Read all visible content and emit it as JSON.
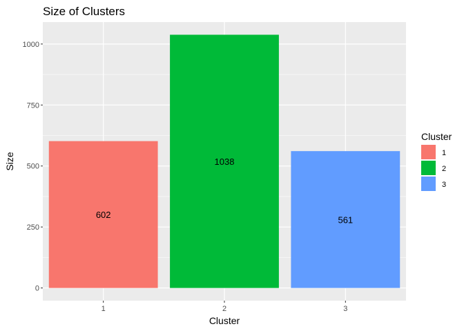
{
  "chart_data": {
    "type": "bar",
    "title": "Size of Clusters",
    "xlabel": "Cluster",
    "ylabel": "Size",
    "categories": [
      "1",
      "2",
      "3"
    ],
    "values": [
      602,
      1038,
      561
    ],
    "data_labels": [
      "602",
      "1038",
      "561"
    ],
    "colors": [
      "#F8766D",
      "#00BA38",
      "#619CFF"
    ],
    "ylim": [
      -52,
      1090
    ],
    "yticks": [
      0,
      250,
      500,
      750,
      1000
    ],
    "ytick_labels": [
      "0",
      "250",
      "500",
      "750",
      "1000"
    ],
    "grid": true,
    "panel_background": "#EBEBEB",
    "legend": {
      "title": "Cluster",
      "position": "right",
      "entries": [
        "1",
        "2",
        "3"
      ]
    }
  }
}
